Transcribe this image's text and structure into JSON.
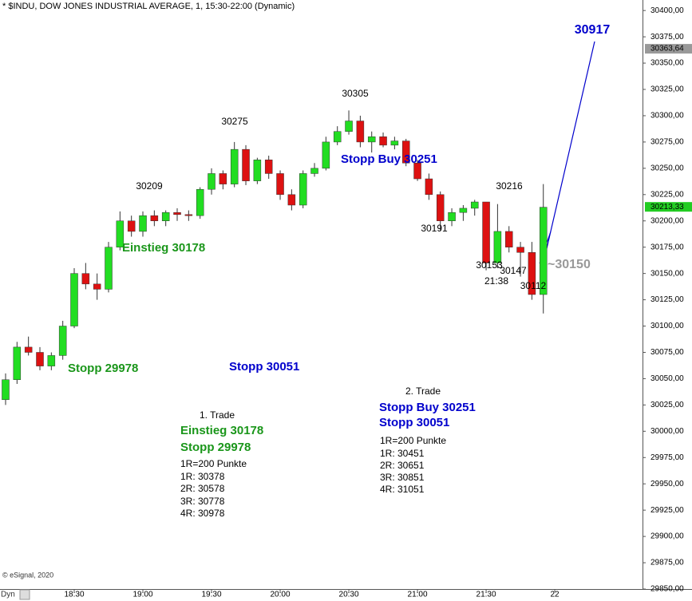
{
  "chart_data": {
    "type": "candlestick",
    "title": "* $INDU, DOW JONES INDUSTRIAL AVERAGE, 1, 15:30-22:00 (Dynamic)",
    "footer": "© eSignal, 2020",
    "corner_label": "Dyn",
    "up_color": "#22dd22",
    "down_color": "#dd1111",
    "x": [
      "18:00",
      "18:05",
      "18:10",
      "18:15",
      "18:20",
      "18:25",
      "18:30",
      "18:35",
      "18:40",
      "18:45",
      "18:50",
      "18:55",
      "19:00",
      "19:05",
      "19:10",
      "19:15",
      "19:20",
      "19:25",
      "19:30",
      "19:35",
      "19:40",
      "19:45",
      "19:50",
      "19:55",
      "20:00",
      "20:05",
      "20:10",
      "20:15",
      "20:20",
      "20:25",
      "20:30",
      "20:35",
      "20:40",
      "20:45",
      "20:50",
      "20:55",
      "21:00",
      "21:05",
      "21:10",
      "21:15",
      "21:20",
      "21:25",
      "21:30",
      "21:35",
      "21:40",
      "21:45",
      "21:50",
      "21:55"
    ],
    "open": [
      30030,
      30049,
      30080,
      30075,
      30062,
      30072,
      30100,
      30150,
      30140,
      30135,
      30175,
      30200,
      30190,
      30205,
      30200,
      30208,
      30206,
      30205,
      30230,
      30245,
      30235,
      30268,
      30238,
      30258,
      30245,
      30225,
      30215,
      30245,
      30250,
      30275,
      30285,
      30295,
      30275,
      30280,
      30272,
      30276,
      30255,
      30240,
      30225,
      30200,
      30208,
      30212,
      30218,
      30160,
      30190,
      30175,
      30170,
      30130
    ],
    "high": [
      30055,
      30085,
      30090,
      30080,
      30075,
      30105,
      30155,
      30160,
      30150,
      30180,
      30209,
      30205,
      30209,
      30210,
      30210,
      30212,
      30210,
      30232,
      30250,
      30248,
      30275,
      30272,
      30260,
      30262,
      30248,
      30230,
      30248,
      30255,
      30280,
      30290,
      30305,
      30300,
      30285,
      30284,
      30280,
      30278,
      30258,
      30245,
      30228,
      30212,
      30215,
      30220,
      30218,
      30216,
      30195,
      30180,
      30180,
      30235
    ],
    "low": [
      30025,
      30045,
      30072,
      30058,
      30058,
      30068,
      30098,
      30135,
      30125,
      30132,
      30172,
      30185,
      30185,
      30195,
      30195,
      30200,
      30200,
      30202,
      30225,
      30230,
      30232,
      30234,
      30235,
      30240,
      30220,
      30210,
      30212,
      30242,
      30248,
      30272,
      30282,
      30270,
      30265,
      30270,
      30268,
      30252,
      30238,
      30220,
      30191,
      30195,
      30200,
      30205,
      30153,
      30155,
      30170,
      30147,
      30125,
      30112
    ],
    "close": [
      30049,
      30080,
      30075,
      30062,
      30072,
      30100,
      30150,
      30140,
      30135,
      30175,
      30200,
      30190,
      30205,
      30200,
      30208,
      30206,
      30205,
      30230,
      30245,
      30235,
      30268,
      30238,
      30258,
      30245,
      30225,
      30215,
      30245,
      30250,
      30275,
      30285,
      30295,
      30275,
      30280,
      30272,
      30276,
      30255,
      30240,
      30225,
      30200,
      30208,
      30212,
      30218,
      30160,
      30190,
      30175,
      30170,
      30130,
      30213
    ],
    "xticks": [
      "18:30",
      "19:00",
      "19:30",
      "20:00",
      "20:30",
      "21:00",
      "21:30",
      {
        "value": "22:00",
        "label": "22"
      }
    ],
    "ylim": [
      29850,
      30410
    ],
    "yticks": [
      {
        "value": 29850,
        "label": "29850,00"
      },
      {
        "value": 29875,
        "label": "29875,00"
      },
      {
        "value": 29900,
        "label": "29900,00"
      },
      {
        "value": 29925,
        "label": "29925,00"
      },
      {
        "value": 29950,
        "label": "29950,00"
      },
      {
        "value": 29975,
        "label": "29975,00"
      },
      {
        "value": 30000,
        "label": "30000,00"
      },
      {
        "value": 30025,
        "label": "30025,00"
      },
      {
        "value": 30050,
        "label": "30050,00"
      },
      {
        "value": 30075,
        "label": "30075,00"
      },
      {
        "value": 30100,
        "label": "30100,00"
      },
      {
        "value": 30125,
        "label": "30125,00"
      },
      {
        "value": 30150,
        "label": "30150,00"
      },
      {
        "value": 30175,
        "label": "30175,00"
      },
      {
        "value": 30200,
        "label": "30200,00"
      },
      {
        "value": 30225,
        "label": "30225,00"
      },
      {
        "value": 30250,
        "label": "30250,00"
      },
      {
        "value": 30275,
        "label": "30275,00"
      },
      {
        "value": 30300,
        "label": "30300,00"
      },
      {
        "value": 30325,
        "label": "30325,00"
      },
      {
        "value": 30350,
        "label": "30350,00"
      },
      {
        "value": 30375,
        "label": "30375,00"
      },
      {
        "value": 30400,
        "label": "30400,00"
      }
    ],
    "price_markers": [
      {
        "value": 30363.64,
        "label": "30363,64",
        "color": "#999999"
      },
      {
        "value": 30213.33,
        "label": "30213,33",
        "color": "#22cc22"
      }
    ],
    "annotations": [
      {
        "text": "30917",
        "color": "#0000cc"
      },
      {
        "text": "30305",
        "color": "#000000"
      },
      {
        "text": "30275",
        "color": "#000000"
      },
      {
        "text": "30209",
        "color": "#000000"
      },
      {
        "text": "Stopp Buy 30251",
        "color": "#0000cc"
      },
      {
        "text": "30191",
        "color": "#000000"
      },
      {
        "text": "30216",
        "color": "#000000"
      },
      {
        "text": "Einstieg 30178",
        "color": "#1a961a"
      },
      {
        "text": "30153",
        "color": "#000000"
      },
      {
        "text": "30147",
        "color": "#000000"
      },
      {
        "text": "21:38",
        "color": "#000000"
      },
      {
        "text": "~30150",
        "color": "#999999"
      },
      {
        "text": "30112",
        "color": "#000000"
      },
      {
        "text": "Stopp 29978",
        "color": "#1a961a"
      },
      {
        "text": "Stopp 30051",
        "color": "#0000cc"
      },
      {
        "text": "1. Trade",
        "color": "#000000"
      },
      {
        "text": "Einstieg 30178",
        "color": "#1a961a"
      },
      {
        "text": "Stopp 29978",
        "color": "#1a961a"
      },
      {
        "text": "1R=200 Punkte",
        "color": "#000000"
      },
      {
        "text": "1R: 30378",
        "color": "#000000"
      },
      {
        "text": "2R: 30578",
        "color": "#000000"
      },
      {
        "text": "3R: 30778",
        "color": "#000000"
      },
      {
        "text": "4R: 30978",
        "color": "#000000"
      },
      {
        "text": "2. Trade",
        "color": "#000000"
      },
      {
        "text": "Stopp Buy 30251",
        "color": "#0000cc"
      },
      {
        "text": "Stopp 30051",
        "color": "#0000cc"
      },
      {
        "text": "1R=200 Punkte",
        "color": "#000000"
      },
      {
        "text": "1R: 30451",
        "color": "#000000"
      },
      {
        "text": "2R: 30651",
        "color": "#000000"
      },
      {
        "text": "3R: 30851",
        "color": "#000000"
      },
      {
        "text": "4R: 31051",
        "color": "#000000"
      }
    ]
  }
}
